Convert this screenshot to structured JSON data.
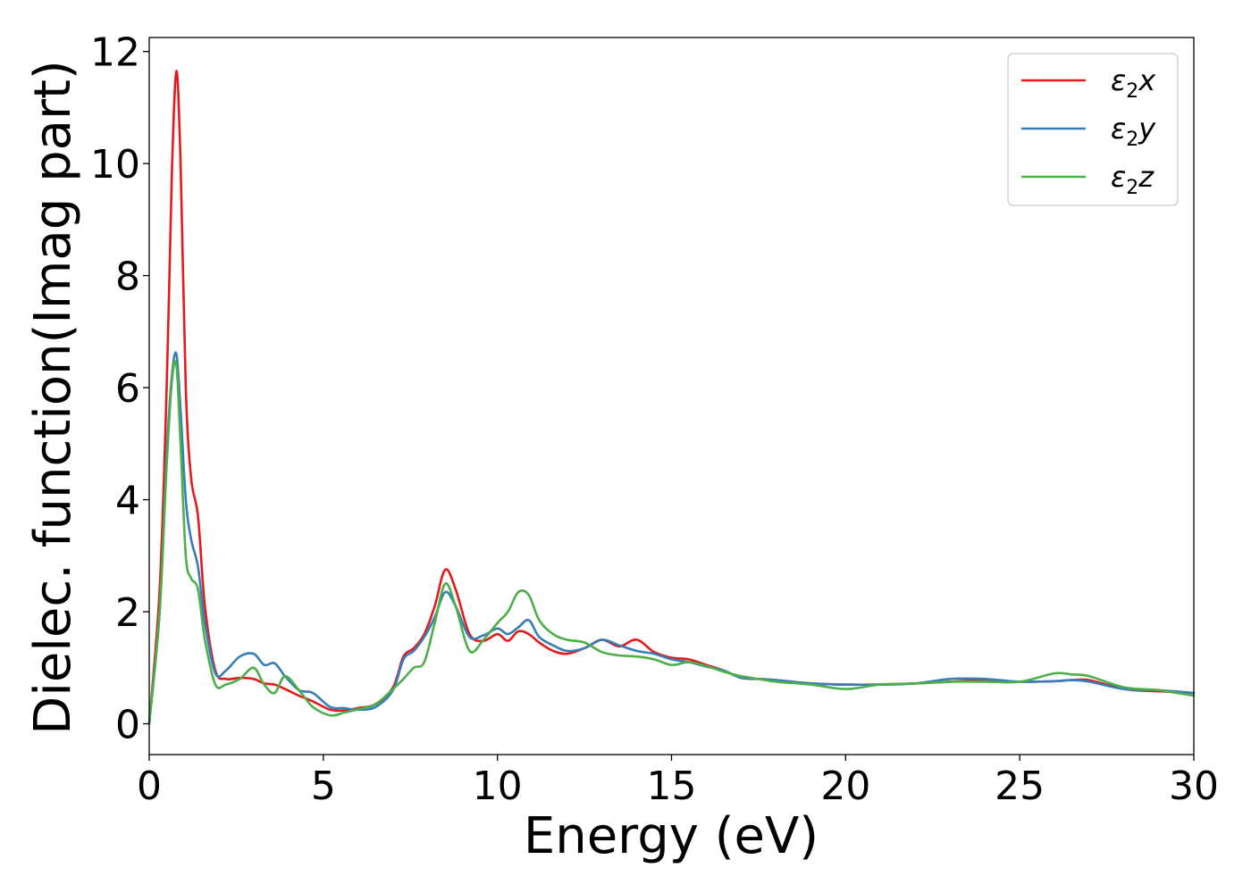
{
  "chart_data": {
    "type": "line",
    "title": "",
    "xlabel": "Energy (eV)",
    "ylabel": "Dielec. function(Imag part)",
    "xlim": [
      0,
      30
    ],
    "ylim": [
      -0.55,
      12.25
    ],
    "xticks": [
      0,
      5,
      10,
      15,
      20,
      25,
      30
    ],
    "yticks": [
      0,
      2,
      4,
      6,
      8,
      10,
      12
    ],
    "grid": false,
    "legend": "top-right",
    "series": [
      {
        "name": "ε2x",
        "label_main": "ε",
        "label_sub": "2",
        "label_tail": "x",
        "color": "#e41a1c",
        "x": [
          0,
          0.3,
          0.5,
          0.65,
          0.78,
          0.9,
          1.05,
          1.2,
          1.4,
          1.6,
          1.9,
          2.2,
          2.6,
          3,
          3.3,
          3.6,
          3.9,
          4.3,
          4.7,
          5.2,
          5.6,
          6,
          6.5,
          7,
          7.3,
          7.6,
          7.9,
          8.2,
          8.5,
          8.8,
          9.2,
          9.6,
          10,
          10.3,
          10.6,
          10.9,
          11.2,
          11.6,
          12,
          12.5,
          13,
          13.5,
          14,
          14.5,
          15,
          15.5,
          16,
          16.5,
          17,
          17.5,
          18,
          19,
          20,
          21,
          22,
          23,
          24,
          25,
          26,
          26.5,
          27,
          28,
          29,
          30
        ],
        "y": [
          0,
          2.4,
          6,
          9.8,
          11.65,
          10,
          6,
          4.4,
          3.7,
          2.1,
          0.95,
          0.8,
          0.82,
          0.8,
          0.72,
          0.7,
          0.62,
          0.5,
          0.4,
          0.25,
          0.24,
          0.28,
          0.35,
          0.65,
          1.2,
          1.35,
          1.6,
          2.1,
          2.75,
          2.4,
          1.6,
          1.48,
          1.6,
          1.48,
          1.65,
          1.6,
          1.45,
          1.3,
          1.25,
          1.35,
          1.5,
          1.38,
          1.5,
          1.28,
          1.18,
          1.15,
          1.05,
          0.95,
          0.82,
          0.8,
          0.78,
          0.72,
          0.7,
          0.7,
          0.72,
          0.75,
          0.78,
          0.75,
          0.76,
          0.78,
          0.78,
          0.62,
          0.58,
          0.55
        ]
      },
      {
        "name": "ε2y",
        "label_main": "ε",
        "label_sub": "2",
        "label_tail": "y",
        "color": "#377eb8",
        "x": [
          0,
          0.3,
          0.5,
          0.65,
          0.78,
          0.9,
          1.05,
          1.2,
          1.4,
          1.6,
          1.9,
          2.2,
          2.6,
          3,
          3.3,
          3.6,
          3.9,
          4.3,
          4.7,
          5.2,
          5.6,
          6,
          6.5,
          7,
          7.3,
          7.6,
          7.9,
          8.2,
          8.5,
          8.8,
          9.2,
          9.6,
          10,
          10.3,
          10.6,
          10.9,
          11.2,
          11.6,
          12,
          12.5,
          13,
          13.5,
          14,
          14.5,
          15,
          15.5,
          16,
          16.5,
          17,
          17.5,
          18,
          19,
          20,
          21,
          22,
          23,
          24,
          25,
          26,
          26.5,
          27,
          28,
          29,
          30
        ],
        "y": [
          0,
          2,
          4.8,
          6.2,
          6.6,
          5.6,
          4,
          3.3,
          2.8,
          1.8,
          0.9,
          0.95,
          1.2,
          1.25,
          1.05,
          1.08,
          0.85,
          0.6,
          0.55,
          0.3,
          0.28,
          0.25,
          0.3,
          0.6,
          1.15,
          1.3,
          1.55,
          1.9,
          2.35,
          2.1,
          1.55,
          1.58,
          1.7,
          1.6,
          1.72,
          1.85,
          1.55,
          1.4,
          1.3,
          1.35,
          1.5,
          1.4,
          1.3,
          1.25,
          1.15,
          1.1,
          1.02,
          0.95,
          0.82,
          0.8,
          0.78,
          0.72,
          0.7,
          0.7,
          0.72,
          0.8,
          0.8,
          0.75,
          0.76,
          0.78,
          0.75,
          0.62,
          0.6,
          0.55
        ]
      },
      {
        "name": "ε2z",
        "label_main": "ε",
        "label_sub": "2",
        "label_tail": "z",
        "color": "#4daf4a",
        "x": [
          0,
          0.3,
          0.5,
          0.65,
          0.78,
          0.9,
          1.05,
          1.2,
          1.4,
          1.6,
          1.9,
          2.2,
          2.6,
          3,
          3.3,
          3.6,
          3.9,
          4.3,
          4.7,
          5.2,
          5.6,
          6,
          6.5,
          7,
          7.3,
          7.6,
          7.9,
          8.2,
          8.5,
          8.8,
          9.2,
          9.6,
          10,
          10.3,
          10.6,
          10.9,
          11.2,
          11.6,
          12,
          12.5,
          13,
          13.5,
          14,
          14.5,
          15,
          15.5,
          16,
          16.5,
          17,
          17.5,
          18,
          19,
          20,
          21,
          22,
          23,
          24,
          25,
          26,
          26.5,
          27,
          28,
          29,
          30
        ],
        "y": [
          0,
          2,
          4.6,
          6.1,
          6.4,
          5,
          3,
          2.6,
          2.4,
          1.5,
          0.7,
          0.7,
          0.8,
          1,
          0.7,
          0.55,
          0.85,
          0.6,
          0.3,
          0.15,
          0.2,
          0.26,
          0.35,
          0.62,
          0.8,
          1,
          1.1,
          1.8,
          2.5,
          2.1,
          1.3,
          1.5,
          1.8,
          2,
          2.35,
          2.3,
          1.85,
          1.6,
          1.5,
          1.45,
          1.28,
          1.22,
          1.2,
          1.15,
          1.05,
          1.1,
          1.03,
          0.93,
          0.85,
          0.8,
          0.75,
          0.7,
          0.62,
          0.7,
          0.72,
          0.75,
          0.75,
          0.75,
          0.9,
          0.88,
          0.85,
          0.65,
          0.6,
          0.5
        ]
      }
    ]
  }
}
